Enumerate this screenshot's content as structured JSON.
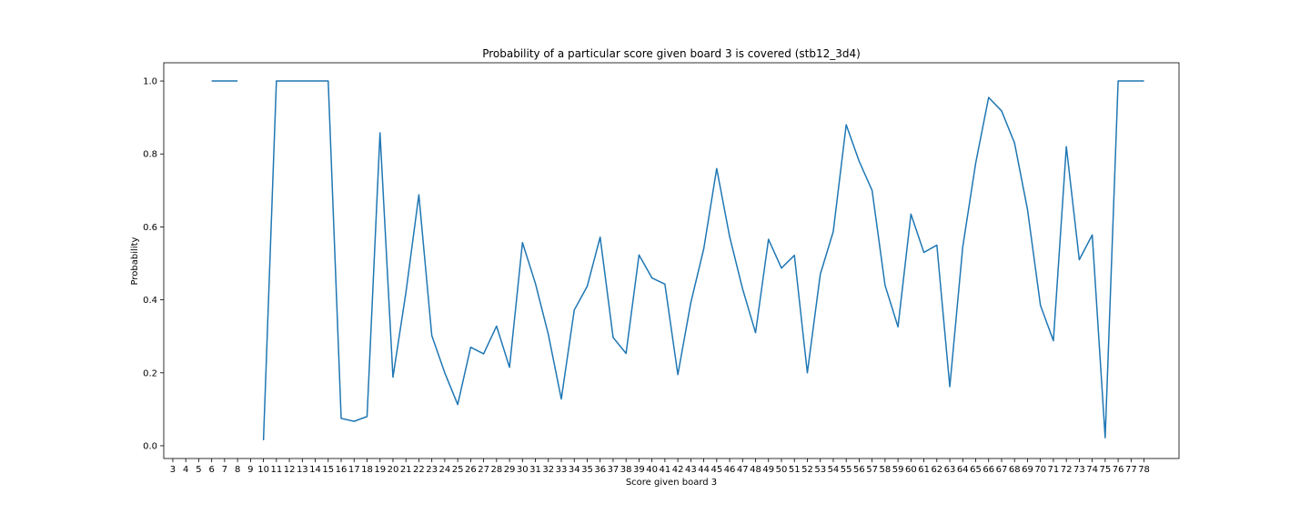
{
  "chart_data": {
    "type": "line",
    "title": "Probability of a particular score given board 3 is covered (stb12_3d4)",
    "xlabel": "Score given board 3",
    "ylabel": "Probability",
    "xlim": [
      2.3,
      80.7
    ],
    "ylim": [
      -0.035,
      1.05
    ],
    "grid": false,
    "x_ticks": [
      3,
      4,
      5,
      6,
      7,
      8,
      9,
      10,
      11,
      12,
      13,
      14,
      15,
      16,
      17,
      18,
      19,
      20,
      21,
      22,
      23,
      24,
      25,
      26,
      27,
      28,
      29,
      30,
      31,
      32,
      33,
      34,
      35,
      36,
      37,
      38,
      39,
      40,
      41,
      42,
      43,
      44,
      45,
      46,
      47,
      48,
      49,
      50,
      51,
      52,
      53,
      54,
      55,
      56,
      57,
      58,
      59,
      60,
      61,
      62,
      63,
      64,
      65,
      66,
      67,
      68,
      69,
      70,
      71,
      72,
      73,
      74,
      75,
      76,
      77,
      78
    ],
    "y_ticks": [
      0.0,
      0.2,
      0.4,
      0.6,
      0.8,
      1.0
    ],
    "y_tick_labels": [
      "0.0",
      "0.2",
      "0.4",
      "0.6",
      "0.8",
      "1.0"
    ],
    "series": [
      {
        "color": "#1f77b4",
        "x": [
          3,
          4,
          5,
          6,
          7,
          8,
          9,
          10,
          11,
          12,
          13,
          14,
          15,
          16,
          17,
          18,
          19,
          20,
          21,
          22,
          23,
          24,
          25,
          26,
          27,
          28,
          29,
          30,
          31,
          32,
          33,
          34,
          35,
          36,
          37,
          38,
          39,
          40,
          41,
          42,
          43,
          44,
          45,
          46,
          47,
          48,
          49,
          50,
          51,
          52,
          53,
          54,
          55,
          56,
          57,
          58,
          59,
          60,
          61,
          62,
          63,
          64,
          65,
          66,
          67,
          68,
          69,
          70,
          71,
          72,
          73,
          74,
          75,
          76,
          77,
          78
        ],
        "y": [
          null,
          null,
          null,
          1.0,
          1.0,
          1.0,
          null,
          0.015,
          1.0,
          1.0,
          1.0,
          1.0,
          1.0,
          0.075,
          0.067,
          0.08,
          0.858,
          0.188,
          0.42,
          0.688,
          0.302,
          0.2,
          0.113,
          0.27,
          0.252,
          0.328,
          0.215,
          0.557,
          0.445,
          0.305,
          0.128,
          0.372,
          0.437,
          0.572,
          0.297,
          0.253,
          0.523,
          0.46,
          0.443,
          0.195,
          0.392,
          0.54,
          0.76,
          0.573,
          0.43,
          0.31,
          0.566,
          0.487,
          0.522,
          0.2,
          0.47,
          0.587,
          0.88,
          0.78,
          0.7,
          0.44,
          0.326,
          0.635,
          0.53,
          0.55,
          0.162,
          0.545,
          0.775,
          0.955,
          0.918,
          0.83,
          0.648,
          0.385,
          0.288,
          0.82,
          0.51,
          0.578,
          0.022,
          1.0,
          1.0,
          1.0
        ]
      }
    ]
  }
}
